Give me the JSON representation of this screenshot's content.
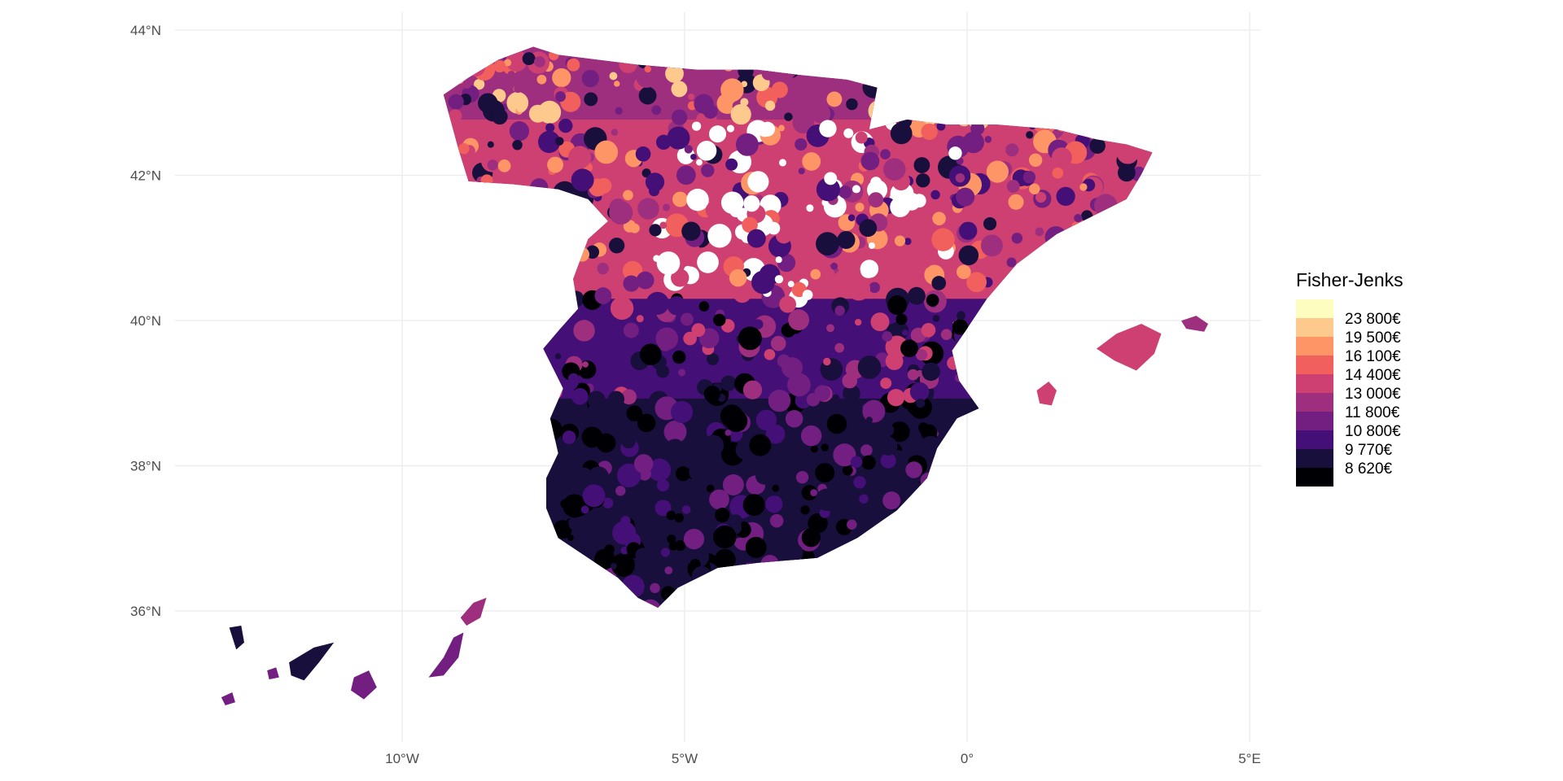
{
  "chart_data": {
    "type": "map",
    "title": "",
    "subject": "Spain municipalities choropleth",
    "x_axis": {
      "ticks": [
        "10°W",
        "5°W",
        "0°",
        "5°E"
      ],
      "tick_values": [
        -10,
        -5,
        0,
        5
      ]
    },
    "y_axis": {
      "ticks": [
        "36°N",
        "38°N",
        "40°N",
        "42°N",
        "44°N"
      ],
      "tick_values": [
        36,
        38,
        40,
        42,
        44
      ]
    },
    "grid": true,
    "legend": {
      "title": "Fisher-Jenks",
      "placement": "right",
      "breaks": [
        "23 800€",
        "19 500€",
        "16 100€",
        "14 400€",
        "13 000€",
        "11 800€",
        "10 800€",
        "9 770€",
        "8 620€"
      ],
      "colors": [
        "#fcfdbf",
        "#fec98d",
        "#fd9567",
        "#f1605d",
        "#cd4071",
        "#9e2f7f",
        "#721f81",
        "#440f76",
        "#180f3d",
        "#000004"
      ]
    }
  }
}
